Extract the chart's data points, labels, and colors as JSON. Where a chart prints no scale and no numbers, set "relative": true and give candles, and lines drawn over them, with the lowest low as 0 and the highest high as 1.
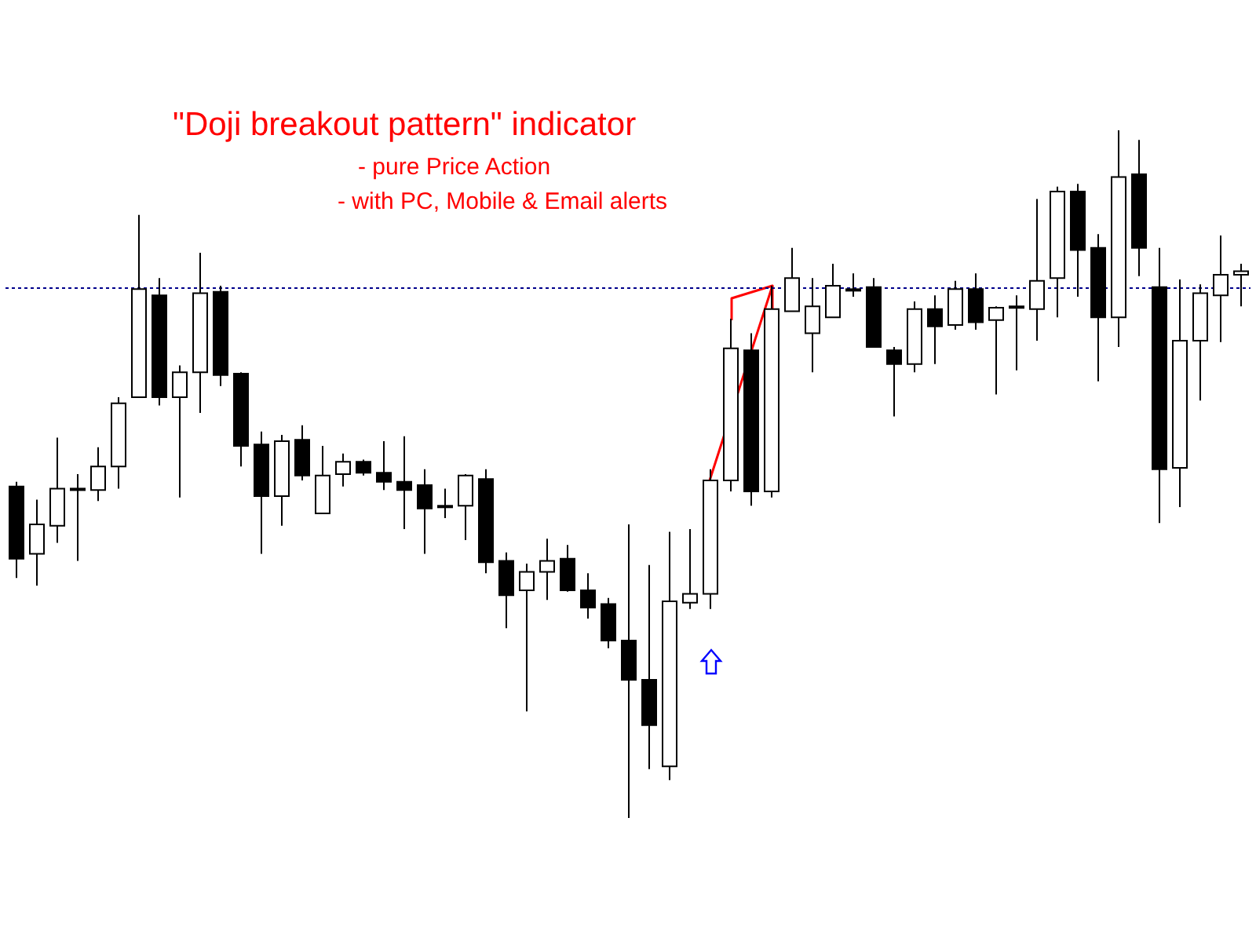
{
  "chart_data": {
    "type": "candlestick",
    "title": "\"Doji breakout pattern\" indicator",
    "annotations": [
      "- pure Price Action",
      "- with PC, Mobile & Email alerts"
    ],
    "relative": true,
    "legend": false,
    "categories": [
      null,
      null,
      null,
      null,
      null,
      null,
      null,
      null,
      null,
      null,
      null,
      null,
      null,
      null,
      null,
      null,
      null,
      null,
      null,
      null,
      null,
      null,
      null,
      null,
      null,
      null,
      null,
      null,
      null,
      null,
      null,
      null,
      null,
      null,
      null,
      null,
      null,
      null,
      null,
      null,
      null,
      null,
      null,
      null,
      null,
      null,
      null,
      null,
      null,
      null,
      null,
      null,
      null,
      null,
      null,
      null,
      null,
      null,
      null,
      null,
      null
    ],
    "ohlc": [
      [
        0.482,
        0.489,
        0.349,
        0.377
      ],
      [
        0.384,
        0.463,
        0.338,
        0.427
      ],
      [
        0.425,
        0.553,
        0.4,
        0.479
      ],
      [
        0.479,
        0.5,
        0.374,
        0.479
      ],
      [
        0.477,
        0.539,
        0.461,
        0.511
      ],
      [
        0.511,
        0.612,
        0.479,
        0.603
      ],
      [
        0.612,
        0.877,
        0.612,
        0.769
      ],
      [
        0.76,
        0.785,
        0.6,
        0.612
      ],
      [
        0.612,
        0.658,
        0.466,
        0.648
      ],
      [
        0.648,
        0.822,
        0.589,
        0.763
      ],
      [
        0.765,
        0.774,
        0.628,
        0.644
      ],
      [
        0.646,
        0.648,
        0.511,
        0.541
      ],
      [
        0.543,
        0.562,
        0.384,
        0.468
      ],
      [
        0.468,
        0.557,
        0.425,
        0.548
      ],
      [
        0.55,
        0.571,
        0.491,
        0.498
      ],
      [
        0.443,
        0.541,
        0.443,
        0.498
      ],
      [
        0.5,
        0.53,
        0.482,
        0.518
      ],
      [
        0.518,
        0.521,
        0.498,
        0.502
      ],
      [
        0.502,
        0.548,
        0.477,
        0.489
      ],
      [
        0.489,
        0.555,
        0.42,
        0.477
      ],
      [
        0.484,
        0.507,
        0.384,
        0.45
      ],
      [
        0.454,
        0.479,
        0.436,
        0.454
      ],
      [
        0.454,
        0.5,
        0.404,
        0.498
      ],
      [
        0.493,
        0.507,
        0.356,
        0.372
      ],
      [
        0.374,
        0.386,
        0.276,
        0.324
      ],
      [
        0.331,
        0.37,
        0.155,
        0.358
      ],
      [
        0.358,
        0.406,
        0.317,
        0.374
      ],
      [
        0.377,
        0.397,
        0.329,
        0.331
      ],
      [
        0.331,
        0.356,
        0.29,
        0.306
      ],
      [
        0.311,
        0.32,
        0.247,
        0.258
      ],
      [
        0.258,
        0.427,
        0,
        0.201
      ],
      [
        0.201,
        0.368,
        0.071,
        0.135
      ],
      [
        0.075,
        0.416,
        0.055,
        0.315
      ],
      [
        0.313,
        0.42,
        0.304,
        0.326
      ],
      [
        0.326,
        0.507,
        0.304,
        0.491
      ],
      [
        0.491,
        0.726,
        0.475,
        0.683
      ],
      [
        0.68,
        0.705,
        0.454,
        0.475
      ],
      [
        0.475,
        0.774,
        0.466,
        0.74
      ],
      [
        0.737,
        0.829,
        0.737,
        0.785
      ],
      [
        0.705,
        0.785,
        0.648,
        0.744
      ],
      [
        0.728,
        0.806,
        0.728,
        0.774
      ],
      [
        0.769,
        0.792,
        0.758,
        0.769
      ],
      [
        0.772,
        0.785,
        0.685,
        0.685
      ],
      [
        0.68,
        0.685,
        0.584,
        0.66
      ],
      [
        0.66,
        0.751,
        0.648,
        0.74
      ],
      [
        0.74,
        0.76,
        0.66,
        0.715
      ],
      [
        0.717,
        0.781,
        0.71,
        0.769
      ],
      [
        0.769,
        0.792,
        0.71,
        0.721
      ],
      [
        0.724,
        0.744,
        0.616,
        0.742
      ],
      [
        0.744,
        0.76,
        0.651,
        0.744
      ],
      [
        0.74,
        0.9,
        0.694,
        0.781
      ],
      [
        0.785,
        0.918,
        0.728,
        0.911
      ],
      [
        0.911,
        0.922,
        0.758,
        0.826
      ],
      [
        0.829,
        0.849,
        0.635,
        0.728
      ],
      [
        0.728,
        1,
        0.685,
        0.932
      ],
      [
        0.936,
        0.986,
        0.788,
        0.829
      ],
      [
        0.772,
        0.829,
        0.429,
        0.507
      ],
      [
        0.509,
        0.783,
        0.452,
        0.694
      ],
      [
        0.694,
        0.776,
        0.607,
        0.763
      ],
      [
        0.76,
        0.847,
        0.692,
        0.79
      ],
      [
        0.79,
        0.806,
        0.744,
        0.795
      ]
    ],
    "ref_lines": [
      {
        "axis": "y",
        "value": 0.772,
        "color": "#00008b",
        "line_style": "dotted"
      }
    ]
  }
}
